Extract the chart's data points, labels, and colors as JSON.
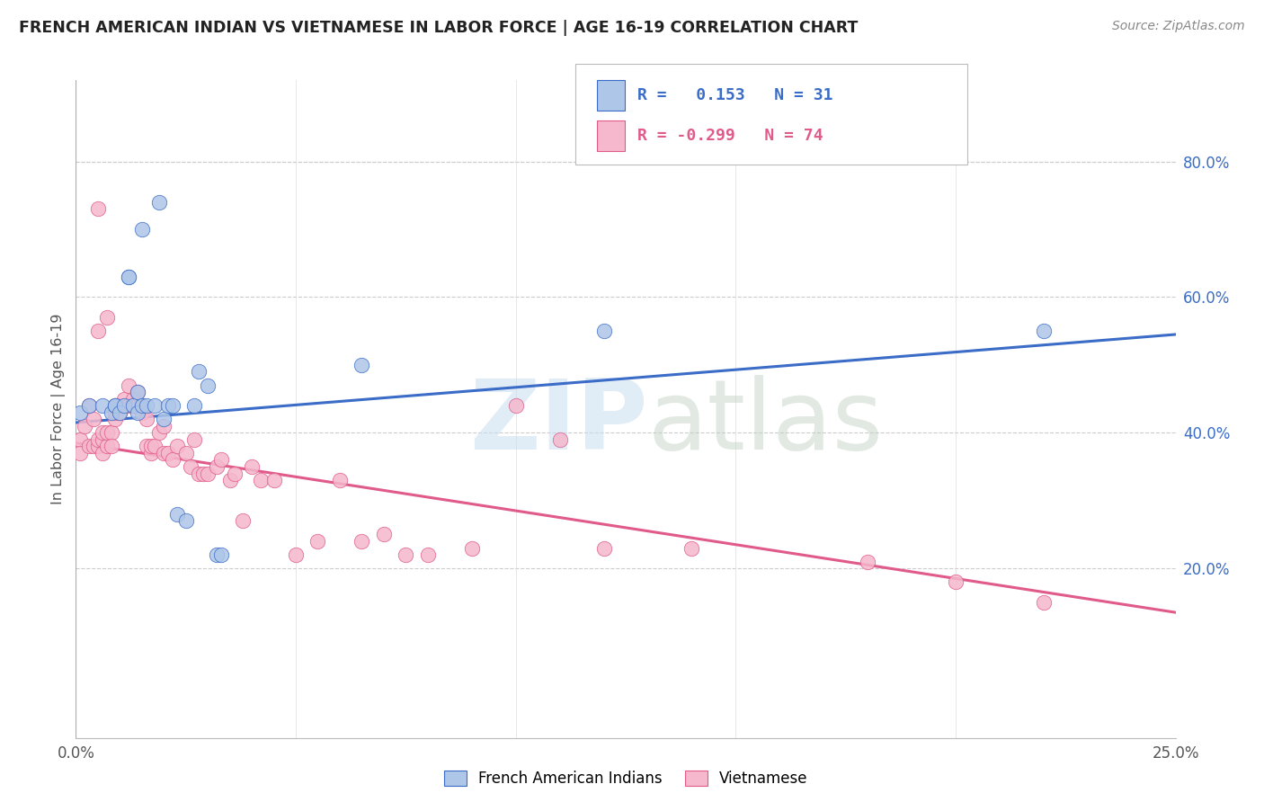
{
  "title": "FRENCH AMERICAN INDIAN VS VIETNAMESE IN LABOR FORCE | AGE 16-19 CORRELATION CHART",
  "source": "Source: ZipAtlas.com",
  "ylabel": "In Labor Force | Age 16-19",
  "x_range": [
    0.0,
    0.25
  ],
  "y_range": [
    -0.05,
    0.92
  ],
  "y_ticks": [
    0.0,
    0.2,
    0.4,
    0.6,
    0.8
  ],
  "y_tick_labels": [
    "",
    "20.0%",
    "40.0%",
    "60.0%",
    "80.0%"
  ],
  "legend_label1": "French American Indians",
  "legend_label2": "Vietnamese",
  "R1": 0.153,
  "N1": 31,
  "R2": -0.299,
  "N2": 74,
  "color1": "#aec6e8",
  "color2": "#f5b8cc",
  "line_color1": "#3b6cc7",
  "line_color2": "#e05a8a",
  "blue_trend_x": [
    0.0,
    0.25
  ],
  "blue_trend_y": [
    0.415,
    0.545
  ],
  "pink_trend_x": [
    0.0,
    0.25
  ],
  "pink_trend_y": [
    0.385,
    0.135
  ],
  "blue_points_x": [
    0.001,
    0.003,
    0.006,
    0.008,
    0.009,
    0.009,
    0.01,
    0.011,
    0.012,
    0.012,
    0.013,
    0.014,
    0.014,
    0.015,
    0.015,
    0.016,
    0.018,
    0.019,
    0.02,
    0.021,
    0.022,
    0.023,
    0.025,
    0.027,
    0.028,
    0.03,
    0.032,
    0.033,
    0.065,
    0.12,
    0.22
  ],
  "blue_points_y": [
    0.43,
    0.44,
    0.44,
    0.43,
    0.44,
    0.44,
    0.43,
    0.44,
    0.63,
    0.63,
    0.44,
    0.46,
    0.43,
    0.44,
    0.7,
    0.44,
    0.44,
    0.74,
    0.42,
    0.44,
    0.44,
    0.28,
    0.27,
    0.44,
    0.49,
    0.47,
    0.22,
    0.22,
    0.5,
    0.55,
    0.55
  ],
  "pink_points_x": [
    0.001,
    0.001,
    0.002,
    0.003,
    0.003,
    0.004,
    0.004,
    0.005,
    0.005,
    0.005,
    0.006,
    0.006,
    0.006,
    0.007,
    0.007,
    0.008,
    0.008,
    0.009,
    0.009,
    0.009,
    0.01,
    0.01,
    0.011,
    0.011,
    0.012,
    0.012,
    0.013,
    0.013,
    0.014,
    0.014,
    0.015,
    0.015,
    0.016,
    0.016,
    0.017,
    0.017,
    0.018,
    0.019,
    0.02,
    0.02,
    0.021,
    0.022,
    0.023,
    0.025,
    0.026,
    0.027,
    0.028,
    0.029,
    0.03,
    0.032,
    0.033,
    0.035,
    0.036,
    0.038,
    0.04,
    0.042,
    0.045,
    0.05,
    0.055,
    0.06,
    0.065,
    0.07,
    0.075,
    0.08,
    0.09,
    0.1,
    0.11,
    0.12,
    0.14,
    0.18,
    0.2,
    0.22,
    0.005,
    0.007
  ],
  "pink_points_y": [
    0.39,
    0.37,
    0.41,
    0.44,
    0.38,
    0.38,
    0.42,
    0.55,
    0.38,
    0.39,
    0.37,
    0.39,
    0.4,
    0.38,
    0.4,
    0.4,
    0.38,
    0.42,
    0.44,
    0.43,
    0.43,
    0.44,
    0.44,
    0.45,
    0.44,
    0.47,
    0.44,
    0.45,
    0.44,
    0.46,
    0.43,
    0.44,
    0.38,
    0.42,
    0.37,
    0.38,
    0.38,
    0.4,
    0.41,
    0.37,
    0.37,
    0.36,
    0.38,
    0.37,
    0.35,
    0.39,
    0.34,
    0.34,
    0.34,
    0.35,
    0.36,
    0.33,
    0.34,
    0.27,
    0.35,
    0.33,
    0.33,
    0.22,
    0.24,
    0.33,
    0.24,
    0.25,
    0.22,
    0.22,
    0.23,
    0.44,
    0.39,
    0.23,
    0.23,
    0.21,
    0.18,
    0.15,
    0.73,
    0.57
  ]
}
